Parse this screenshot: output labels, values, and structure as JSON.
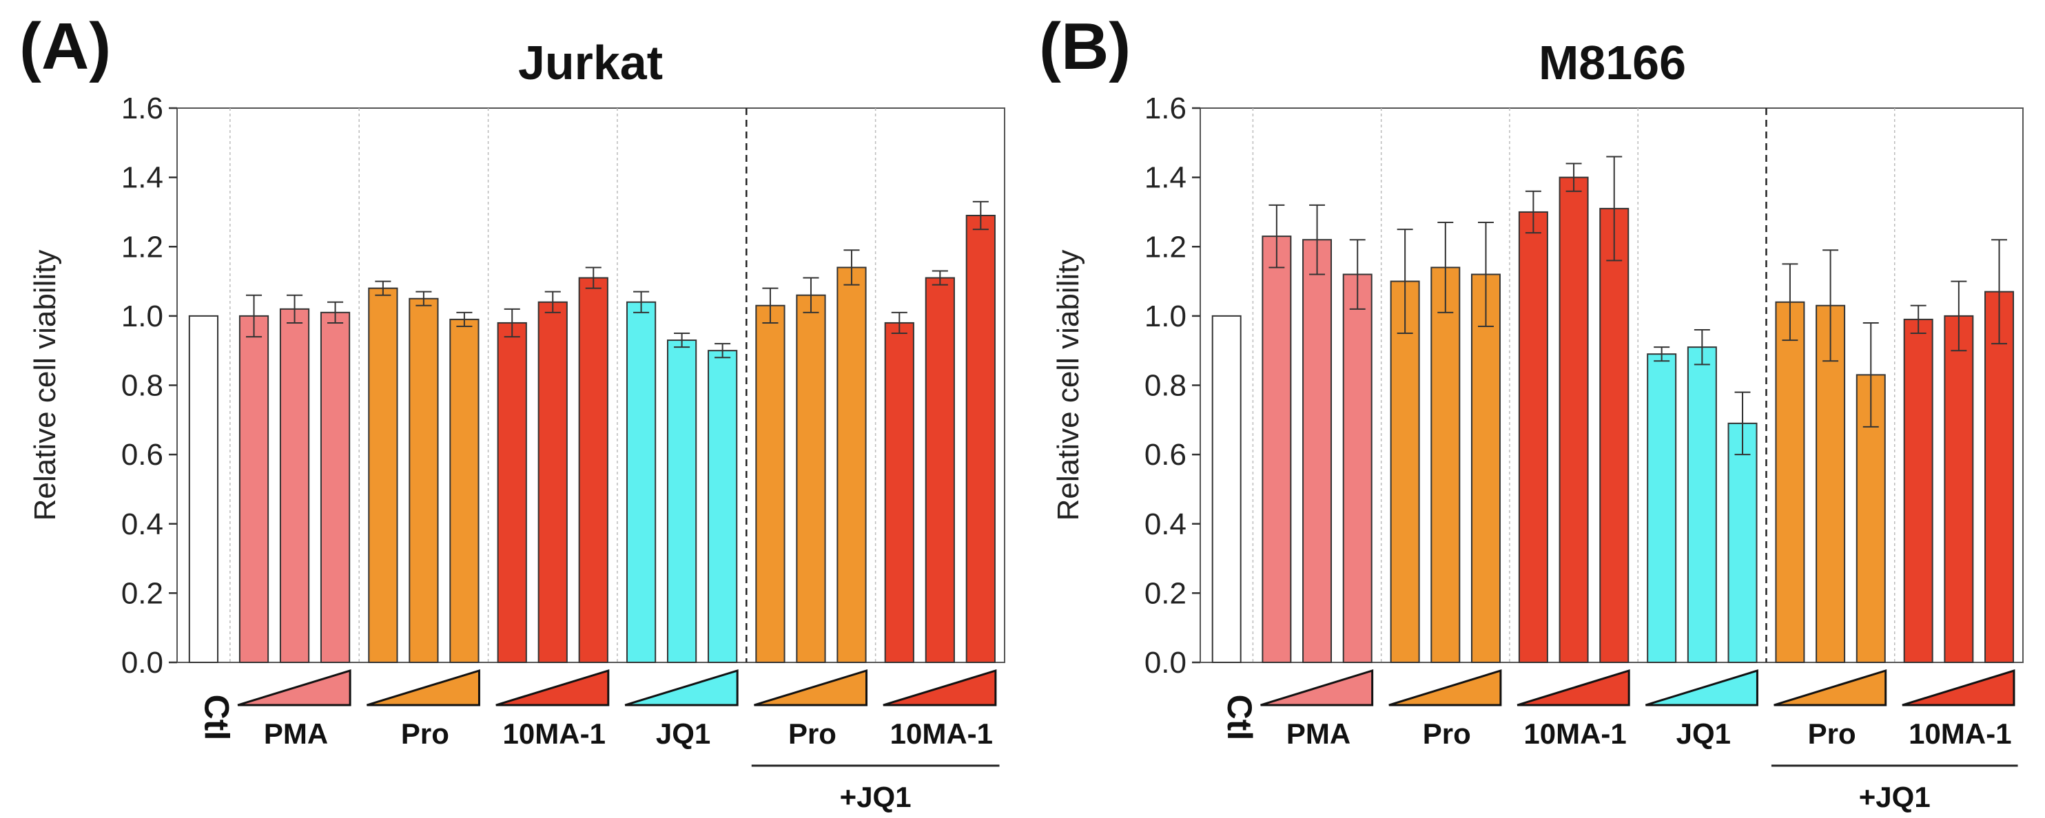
{
  "figure": {
    "panel_letters": [
      "(A)",
      "(B)"
    ]
  },
  "chart_data": [
    {
      "panel": "(A)",
      "type": "bar",
      "title": "Jurkat",
      "ylabel": "Relative cell viability",
      "xlabel": "",
      "ylim": [
        0,
        1.6
      ],
      "yticks": [
        0.0,
        0.2,
        0.4,
        0.6,
        0.8,
        1.0,
        1.2,
        1.4,
        1.6
      ],
      "ytick_labels": [
        "0.0",
        "0.2",
        "0.4",
        "0.6",
        "0.8",
        "1.0",
        "1.2",
        "1.4",
        "1.6"
      ],
      "grid": false,
      "control": {
        "label": "Ctl",
        "value": 1.0,
        "color": "#ffffff"
      },
      "groups": [
        {
          "label": "PMA",
          "color": "#f08080",
          "values": [
            1.0,
            1.02,
            1.01
          ],
          "errors": [
            0.06,
            0.04,
            0.03
          ]
        },
        {
          "label": "Pro",
          "color": "#f0962e",
          "values": [
            1.08,
            1.05,
            0.99
          ],
          "errors": [
            0.02,
            0.02,
            0.02
          ]
        },
        {
          "label": "10MA-1",
          "color": "#e8412a",
          "values": [
            0.98,
            1.04,
            1.11
          ],
          "errors": [
            0.04,
            0.03,
            0.03
          ]
        },
        {
          "label": "JQ1",
          "color": "#5ef0f0",
          "values": [
            1.04,
            0.93,
            0.9
          ],
          "errors": [
            0.03,
            0.02,
            0.02
          ]
        },
        {
          "label": "Pro",
          "color": "#f0962e",
          "values": [
            1.03,
            1.06,
            1.14
          ],
          "errors": [
            0.05,
            0.05,
            0.05
          ]
        },
        {
          "label": "10MA-1",
          "color": "#e8412a",
          "values": [
            0.98,
            1.11,
            1.29
          ],
          "errors": [
            0.03,
            0.02,
            0.04
          ]
        }
      ],
      "combo_label": "+JQ1",
      "combo_group_start": 4
    },
    {
      "panel": "(B)",
      "type": "bar",
      "title": "M8166",
      "ylabel": "Relative cell viability",
      "xlabel": "",
      "ylim": [
        0,
        1.6
      ],
      "yticks": [
        0.0,
        0.2,
        0.4,
        0.6,
        0.8,
        1.0,
        1.2,
        1.4,
        1.6
      ],
      "ytick_labels": [
        "0.0",
        "0.2",
        "0.4",
        "0.6",
        "0.8",
        "1.0",
        "1.2",
        "1.4",
        "1.6"
      ],
      "grid": false,
      "control": {
        "label": "Ctl",
        "value": 1.0,
        "color": "#ffffff"
      },
      "groups": [
        {
          "label": "PMA",
          "color": "#f08080",
          "values": [
            1.23,
            1.22,
            1.12
          ],
          "errors": [
            0.09,
            0.1,
            0.1
          ]
        },
        {
          "label": "Pro",
          "color": "#f0962e",
          "values": [
            1.1,
            1.14,
            1.12
          ],
          "errors": [
            0.15,
            0.13,
            0.15
          ]
        },
        {
          "label": "10MA-1",
          "color": "#e8412a",
          "values": [
            1.3,
            1.4,
            1.31
          ],
          "errors": [
            0.06,
            0.04,
            0.15
          ]
        },
        {
          "label": "JQ1",
          "color": "#5ef0f0",
          "values": [
            0.89,
            0.91,
            0.69
          ],
          "errors": [
            0.02,
            0.05,
            0.09
          ]
        },
        {
          "label": "Pro",
          "color": "#f0962e",
          "values": [
            1.04,
            1.03,
            0.83
          ],
          "errors": [
            0.11,
            0.16,
            0.15
          ]
        },
        {
          "label": "10MA-1",
          "color": "#e8412a",
          "values": [
            0.99,
            1.0,
            1.07
          ],
          "errors": [
            0.04,
            0.1,
            0.15
          ]
        }
      ],
      "combo_label": "+JQ1",
      "combo_group_start": 4
    }
  ]
}
